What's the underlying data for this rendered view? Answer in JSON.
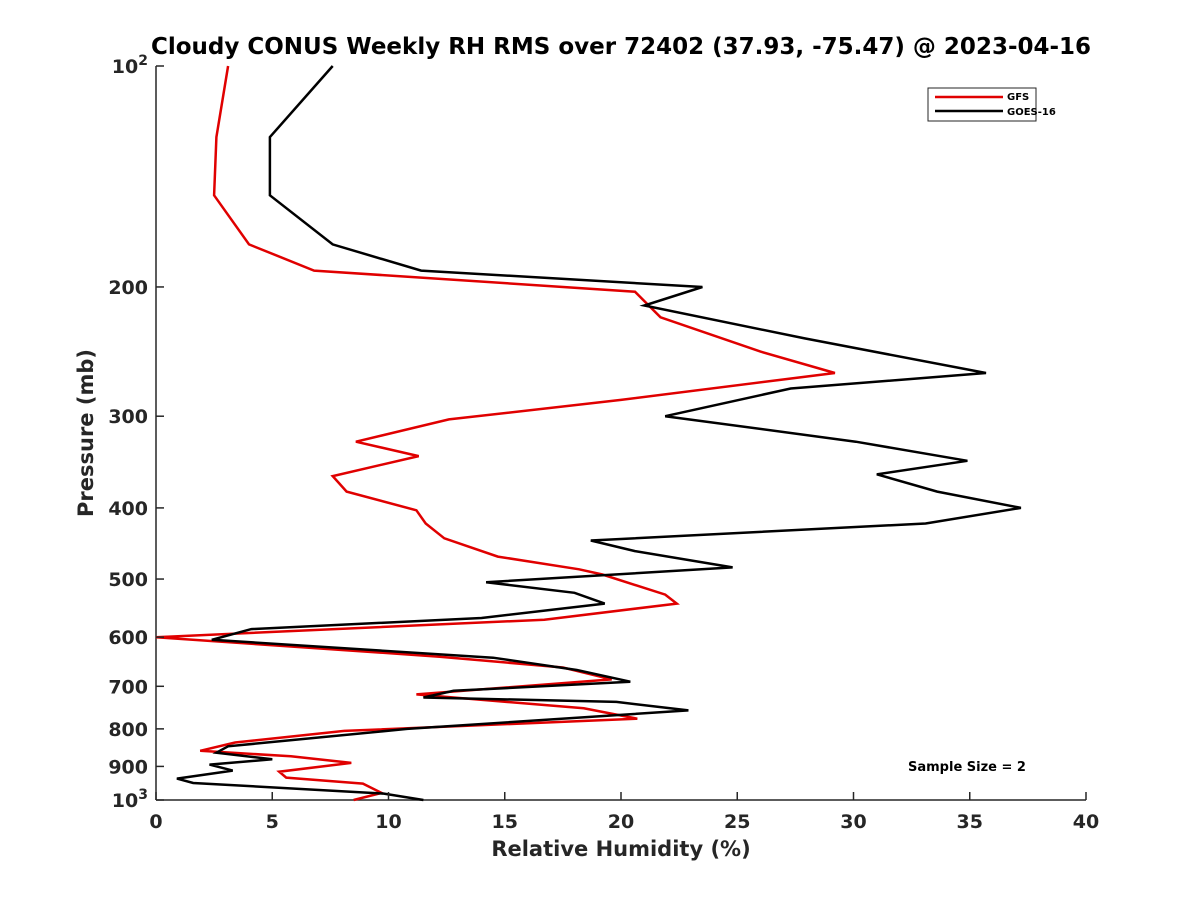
{
  "chart_data": {
    "type": "line",
    "title": "Cloudy CONUS Weekly RH RMS over 72402 (37.93, -75.47) @ 2023-04-16",
    "xlabel": "Relative Humidity (%)",
    "ylabel": "Pressure (mb)",
    "xlim": [
      0,
      40
    ],
    "ylim": [
      100,
      1000
    ],
    "y_scale": "log",
    "y_reversed": true,
    "x_ticks": [
      "0",
      "5",
      "10",
      "15",
      "20",
      "25",
      "30",
      "35",
      "40"
    ],
    "y_ticks": [
      {
        "value": 100,
        "base": "10",
        "exp": "2"
      },
      {
        "value": 200,
        "base": "200",
        "exp": ""
      },
      {
        "value": 300,
        "base": "300",
        "exp": ""
      },
      {
        "value": 400,
        "base": "400",
        "exp": ""
      },
      {
        "value": 500,
        "base": "500",
        "exp": ""
      },
      {
        "value": 600,
        "base": "600",
        "exp": ""
      },
      {
        "value": 700,
        "base": "700",
        "exp": ""
      },
      {
        "value": 800,
        "base": "800",
        "exp": ""
      },
      {
        "value": 900,
        "base": "900",
        "exp": ""
      },
      {
        "value": 1000,
        "base": "10",
        "exp": "3"
      }
    ],
    "grid": false,
    "legend_position": "top-right",
    "annotation": "Sample Size = 2",
    "series": [
      {
        "name": "GFS",
        "color": "#e00000",
        "points": [
          [
            3.1,
            100
          ],
          [
            2.6,
            125
          ],
          [
            2.5,
            150
          ],
          [
            4.0,
            175
          ],
          [
            6.8,
            190
          ],
          [
            20.6,
            203
          ],
          [
            21.7,
            220
          ],
          [
            26.0,
            245
          ],
          [
            29.2,
            262
          ],
          [
            20.0,
            285
          ],
          [
            12.6,
            303
          ],
          [
            8.6,
            325
          ],
          [
            11.3,
            340
          ],
          [
            7.6,
            362
          ],
          [
            8.2,
            380
          ],
          [
            11.2,
            403
          ],
          [
            11.6,
            420
          ],
          [
            12.4,
            440
          ],
          [
            14.7,
            466
          ],
          [
            18.2,
            485
          ],
          [
            19.2,
            493
          ],
          [
            21.9,
            525
          ],
          [
            22.4,
            540
          ],
          [
            16.7,
            568
          ],
          [
            0.0,
            600
          ],
          [
            12.2,
            638
          ],
          [
            17.5,
            660
          ],
          [
            19.6,
            685
          ],
          [
            11.2,
            718
          ],
          [
            18.4,
            750
          ],
          [
            20.7,
            775
          ],
          [
            8.1,
            805
          ],
          [
            3.4,
            835
          ],
          [
            1.9,
            857
          ],
          [
            5.8,
            872
          ],
          [
            8.4,
            890
          ],
          [
            5.3,
            915
          ],
          [
            5.6,
            932
          ],
          [
            8.9,
            950
          ],
          [
            9.7,
            978
          ],
          [
            8.5,
            1000
          ]
        ]
      },
      {
        "name": "GOES-16",
        "color": "#000000",
        "points": [
          [
            7.6,
            100
          ],
          [
            4.9,
            125
          ],
          [
            4.9,
            150
          ],
          [
            7.6,
            175
          ],
          [
            11.4,
            190
          ],
          [
            23.5,
            200
          ],
          [
            21.0,
            212
          ],
          [
            27.9,
            235
          ],
          [
            35.7,
            262
          ],
          [
            27.3,
            275
          ],
          [
            21.9,
            300
          ],
          [
            30.1,
            325
          ],
          [
            34.9,
            345
          ],
          [
            31.0,
            360
          ],
          [
            33.6,
            380
          ],
          [
            37.2,
            400
          ],
          [
            33.1,
            420
          ],
          [
            18.7,
            443
          ],
          [
            20.6,
            458
          ],
          [
            24.8,
            482
          ],
          [
            14.2,
            505
          ],
          [
            18.0,
            522
          ],
          [
            19.3,
            540
          ],
          [
            14.0,
            565
          ],
          [
            4.1,
            585
          ],
          [
            2.4,
            605
          ],
          [
            14.5,
            640
          ],
          [
            18.1,
            665
          ],
          [
            20.4,
            690
          ],
          [
            12.8,
            710
          ],
          [
            11.5,
            725
          ],
          [
            19.8,
            735
          ],
          [
            22.9,
            755
          ],
          [
            10.8,
            800
          ],
          [
            3.1,
            845
          ],
          [
            2.6,
            862
          ],
          [
            5.0,
            880
          ],
          [
            2.3,
            895
          ],
          [
            3.3,
            912
          ],
          [
            0.9,
            935
          ],
          [
            1.6,
            948
          ],
          [
            9.8,
            980
          ],
          [
            11.5,
            1000
          ]
        ]
      }
    ]
  }
}
